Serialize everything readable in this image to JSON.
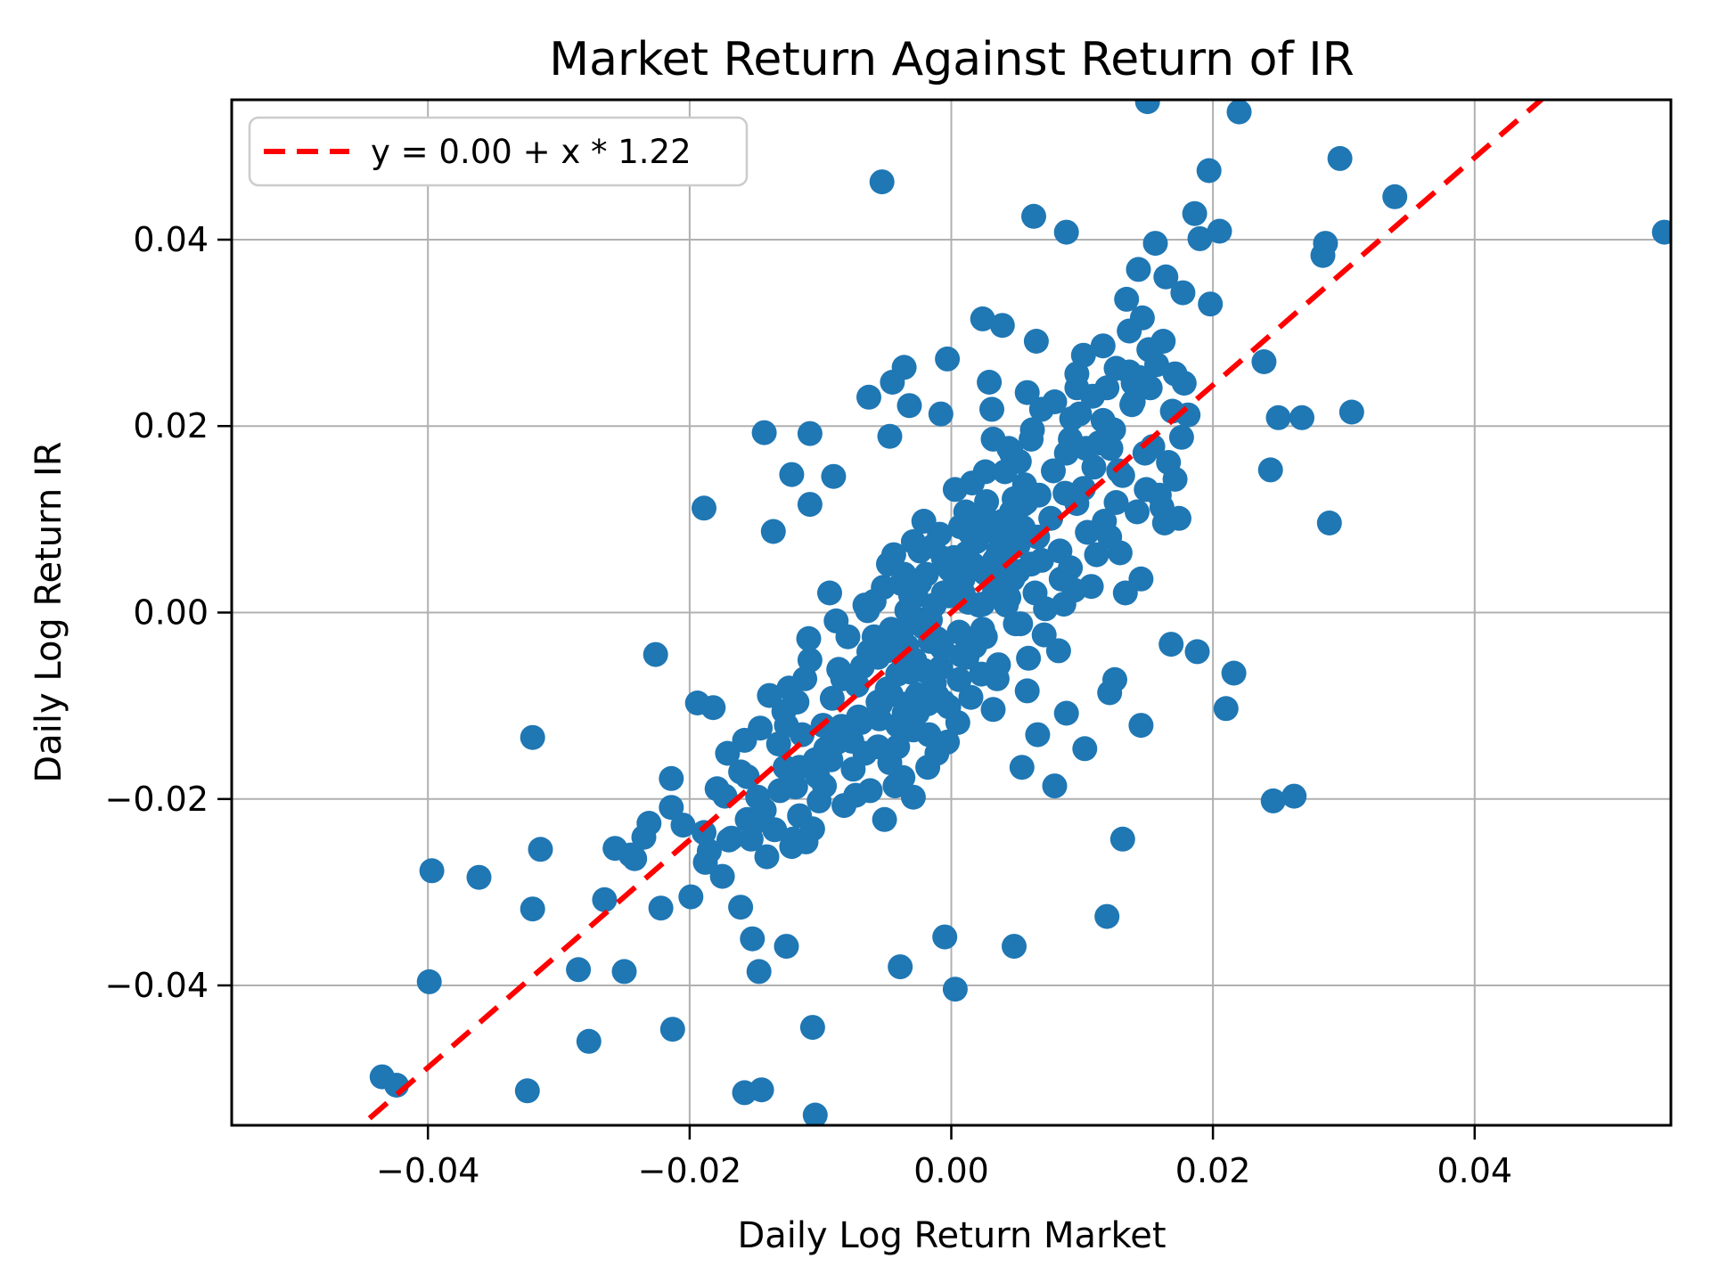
{
  "chart_data": {
    "type": "scatter",
    "title": "Market Return Against Return of IR",
    "xlabel": "Daily Log Return Market",
    "ylabel": "Daily Log Return IR",
    "xlim": [
      -0.055,
      0.055
    ],
    "ylim": [
      -0.055,
      0.055
    ],
    "x_ticks": [
      -0.04,
      -0.02,
      0.0,
      0.02,
      0.04
    ],
    "x_tick_labels": [
      "−0.04",
      "−0.02",
      "0.00",
      "0.02",
      "0.04"
    ],
    "y_ticks": [
      -0.04,
      -0.02,
      0.0,
      0.02,
      0.04
    ],
    "y_tick_labels": [
      "−0.04",
      "−0.02",
      "0.00",
      "0.02",
      "0.04"
    ],
    "grid": true,
    "grid_color": "#b0b0b0",
    "spine_color": "#000000",
    "marker_color": "#1f77b4",
    "marker_radius_px": 14,
    "legend": {
      "position": "upper left",
      "entries": [
        {
          "label": "y = 0.00 + x * 1.22",
          "color": "#ff0000",
          "linestyle": "dashed"
        }
      ]
    },
    "regression_line": {
      "intercept": 0.0,
      "slope": 1.22,
      "color": "#ff0000",
      "linestyle": "dashed"
    },
    "points": [
      [
        -0.0053,
        0.0462
      ],
      [
        0.022,
        0.0537
      ],
      [
        0.0297,
        0.0487
      ],
      [
        0.0197,
        0.0474
      ],
      [
        0.015,
        0.0548
      ],
      [
        0.0156,
        0.0396
      ],
      [
        0.019,
        0.0401
      ],
      [
        0.0286,
        0.0396
      ],
      [
        0.0284,
        0.0383
      ],
      [
        0.0339,
        0.0446
      ],
      [
        0.0545,
        0.0408
      ],
      [
        0.0063,
        0.0425
      ],
      [
        0.0088,
        0.0408
      ],
      [
        0.0186,
        0.0428
      ],
      [
        0.0205,
        0.0409
      ],
      [
        0.0143,
        0.0368
      ],
      [
        0.0164,
        0.036
      ],
      [
        0.0177,
        0.0343
      ],
      [
        0.0134,
        0.0336
      ],
      [
        0.0198,
        0.0331
      ],
      [
        0.0239,
        0.0269
      ],
      [
        0.025,
        0.0209
      ],
      [
        0.0268,
        0.0209
      ],
      [
        0.0244,
        0.0153
      ],
      [
        0.0289,
        0.0096
      ],
      [
        0.0306,
        0.0215
      ],
      [
        0.021,
        -0.0103
      ],
      [
        0.0168,
        -0.0034
      ],
      [
        0.0188,
        -0.0042
      ],
      [
        0.0216,
        -0.0065
      ],
      [
        0.0246,
        -0.0202
      ],
      [
        0.0262,
        -0.0197
      ],
      [
        0.0131,
        -0.0243
      ],
      [
        0.0119,
        -0.0326
      ],
      [
        0.0125,
        -0.0072
      ],
      [
        0.0145,
        -0.0121
      ],
      [
        -0.0104,
        -0.0539
      ],
      [
        -0.0158,
        -0.0515
      ],
      [
        -0.0145,
        -0.0512
      ],
      [
        -0.0106,
        -0.0445
      ],
      [
        -0.0213,
        -0.0447
      ],
      [
        -0.0277,
        -0.046
      ],
      [
        -0.0324,
        -0.0513
      ],
      [
        -0.0424,
        -0.0507
      ],
      [
        -0.0435,
        -0.0498
      ],
      [
        -0.0399,
        -0.0396
      ],
      [
        -0.0397,
        -0.0277
      ],
      [
        -0.0314,
        -0.0254
      ],
      [
        -0.032,
        -0.0318
      ],
      [
        -0.032,
        -0.0134
      ],
      [
        -0.0361,
        -0.0284
      ],
      [
        -0.025,
        -0.0385
      ],
      [
        -0.0147,
        -0.0385
      ],
      [
        -0.0126,
        -0.0358
      ],
      [
        -0.0152,
        -0.035
      ],
      [
        -0.0039,
        -0.038
      ],
      [
        0.0003,
        -0.0404
      ],
      [
        0.0048,
        -0.0358
      ],
      [
        -0.0005,
        -0.0348
      ],
      [
        -0.0231,
        -0.0226
      ],
      [
        -0.0205,
        -0.0228
      ],
      [
        -0.0189,
        -0.0236
      ],
      [
        -0.0214,
        -0.0178
      ],
      [
        -0.0257,
        -0.0253
      ],
      [
        -0.0245,
        -0.026
      ],
      [
        -0.0194,
        -0.0097
      ],
      [
        -0.0182,
        -0.0102
      ],
      [
        -0.0285,
        -0.0383
      ],
      [
        -0.0242,
        -0.0264
      ],
      [
        -0.0222,
        -0.0317
      ],
      [
        -0.0265,
        -0.0308
      ],
      [
        -0.0235,
        -0.0241
      ],
      [
        -0.0199,
        -0.0305
      ],
      [
        -0.0175,
        -0.0283
      ],
      [
        -0.0161,
        -0.0316
      ],
      [
        -0.0188,
        -0.0268
      ],
      [
        -0.017,
        -0.0244
      ],
      [
        -0.0214,
        -0.0209
      ],
      [
        -0.0173,
        -0.0197
      ],
      [
        -0.0156,
        -0.0222
      ],
      [
        -0.0108,
        0.0192
      ],
      [
        -0.0143,
        0.0193
      ],
      [
        -0.0122,
        0.0148
      ],
      [
        -0.0189,
        0.0112
      ],
      [
        -0.0136,
        0.0087
      ],
      [
        -0.0108,
        0.0116
      ],
      [
        -0.0226,
        -0.0045
      ],
      [
        0.0024,
        0.0315
      ],
      [
        0.0039,
        0.0308
      ],
      [
        0.0065,
        0.0291
      ],
      [
        -0.0003,
        0.0272
      ],
      [
        -0.0036,
        0.0263
      ],
      [
        -0.0045,
        0.0247
      ],
      [
        -0.0063,
        0.0231
      ],
      [
        -0.0032,
        0.0222
      ],
      [
        0.0029,
        0.0247
      ],
      [
        0.0031,
        0.0218
      ],
      [
        -0.0008,
        0.0213
      ],
      [
        -0.0047,
        0.0189
      ],
      [
        -0.009,
        0.0146
      ],
      [
        0.0101,
        0.0276
      ],
      [
        0.0012,
        0.0064
      ],
      [
        -0.0087,
        -0.0139
      ],
      [
        0.0035,
        -0.0071
      ],
      [
        -0.0019,
        0.0041
      ],
      [
        0.0078,
        0.0152
      ],
      [
        -0.0128,
        -0.0106
      ],
      [
        0.0005,
        -0.0118
      ],
      [
        -0.0052,
        0.0027
      ],
      [
        0.0091,
        0.0048
      ],
      [
        -0.0143,
        -0.0212
      ],
      [
        0.0027,
        0.0119
      ],
      [
        -0.0008,
        -0.0059
      ],
      [
        0.0064,
        0.0021
      ],
      [
        -0.0171,
        -0.0151
      ],
      [
        0.0103,
        0.0176
      ],
      [
        -0.0034,
        -0.0098
      ],
      [
        0.0149,
        0.0132
      ],
      [
        -0.0066,
        0.0008
      ],
      [
        0.0018,
        -0.0036
      ],
      [
        -0.0112,
        -0.0071
      ],
      [
        0.0056,
        0.0137
      ],
      [
        -0.0185,
        -0.0256
      ],
      [
        0.0129,
        0.0064
      ],
      [
        -0.0041,
        -0.0144
      ],
      [
        0.0088,
        0.0171
      ],
      [
        -0.0023,
        -0.0008
      ],
      [
        0.0007,
        0.0092
      ],
      [
        -0.0135,
        -0.0233
      ],
      [
        0.0166,
        0.0161
      ],
      [
        -0.0075,
        -0.0168
      ],
      [
        0.0042,
        0.0008
      ],
      [
        -0.0097,
        -0.0186
      ],
      [
        0.0115,
        0.0091
      ],
      [
        -0.0014,
        0.0071
      ],
      [
        0.0071,
        -0.0024
      ],
      [
        -0.0158,
        -0.0137
      ],
      [
        0.0026,
        0.0151
      ],
      [
        -0.0063,
        -0.0042
      ],
      [
        0.0138,
        0.0223
      ],
      [
        -0.0029,
        -0.0126
      ],
      [
        0.0096,
        0.0117
      ],
      [
        -0.0119,
        -0.0187
      ],
      [
        0.0001,
        0.0023
      ],
      [
        -0.0146,
        -0.0124
      ],
      [
        0.0059,
        -0.0049
      ],
      [
        -0.0082,
        -0.0207
      ],
      [
        0.0124,
        0.0196
      ],
      [
        -0.0048,
        0.0052
      ],
      [
        0.0083,
        0.0066
      ],
      [
        -0.0037,
        -0.0177
      ],
      [
        0.0021,
        0.0104
      ],
      [
        -0.0108,
        -0.0051
      ],
      [
        0.0152,
        0.0241
      ],
      [
        -0.0011,
        -0.0089
      ],
      [
        0.0048,
        0.0122
      ],
      [
        -0.0122,
        -0.0251
      ],
      [
        0.0107,
        0.0028
      ],
      [
        -0.0055,
        -0.0114
      ],
      [
        0.0176,
        0.0188
      ],
      [
        -0.0093,
        0.0021
      ],
      [
        0.0015,
        -0.0091
      ],
      [
        -0.0069,
        -0.0118
      ],
      [
        0.0131,
        0.0147
      ],
      [
        -0.0027,
        0.0018
      ],
      [
        0.0069,
        0.0218
      ],
      [
        -0.0151,
        -0.0226
      ],
      [
        0.0037,
        0.0058
      ],
      [
        -0.0104,
        -0.0158
      ],
      [
        0.0086,
        0.0009
      ],
      [
        -0.0003,
        -0.0139
      ],
      [
        0.0142,
        0.0108
      ],
      [
        -0.0059,
        -0.0026
      ],
      [
        0.0098,
        0.0213
      ],
      [
        -0.0031,
        -0.0064
      ],
      [
        0.0009,
        0.0036
      ],
      [
        -0.0139,
        -0.0089
      ],
      [
        0.0119,
        0.0241
      ],
      [
        -0.0084,
        -0.0122
      ],
      [
        0.0053,
        -0.0012
      ],
      [
        -0.0116,
        -0.0218
      ],
      [
        0.0161,
        0.0113
      ],
      [
        -0.0044,
        0.0062
      ],
      [
        0.0032,
        -0.0104
      ],
      [
        -0.0168,
        -0.0242
      ],
      [
        0.0003,
        0.0132
      ],
      [
        -0.0079,
        -0.0026
      ],
      [
        0.0113,
        0.0182
      ],
      [
        -0.0018,
        -0.0166
      ],
      [
        0.0145,
        0.0036
      ],
      [
        -0.0101,
        -0.0202
      ],
      [
        0.0076,
        0.0101
      ],
      [
        -0.0009,
        0.0084
      ],
      [
        0.0136,
        0.0258
      ],
      [
        -0.0127,
        -0.0166
      ],
      [
        0.0046,
        0.0171
      ],
      [
        -0.0036,
        -0.0051
      ],
      [
        0.0023,
        -0.0066
      ],
      [
        -0.0091,
        -0.0092
      ],
      [
        0.0169,
        0.0216
      ],
      [
        -0.0062,
        -0.0191
      ],
      [
        0.0101,
        0.0133
      ],
      [
        -0.0021,
        0.0098
      ],
      [
        0.0061,
        0.0186
      ],
      [
        -0.0132,
        -0.0141
      ],
      [
        0.0013,
        0.0011
      ],
      [
        -0.0072,
        -0.0078
      ],
      [
        0.0157,
        0.0266
      ],
      [
        -0.0047,
        -0.0161
      ],
      [
        0.0094,
        0.0024
      ],
      [
        -0.0016,
        -0.0031
      ],
      [
        0.0041,
        0.0151
      ],
      [
        -0.0106,
        -0.0232
      ],
      [
        0.0121,
        0.0081
      ],
      [
        -0.0001,
        0.0046
      ],
      [
        0.0029,
        0.0098
      ],
      [
        -0.0056,
        -0.0144
      ],
      [
        0.0148,
        0.0171
      ],
      [
        -0.0033,
        0.0003
      ],
      [
        0.0082,
        -0.0041
      ],
      [
        -0.0114,
        -0.0131
      ],
      [
        0.0006,
        -0.0021
      ],
      [
        -0.0148,
        -0.0198
      ],
      [
        0.0067,
        0.0126
      ],
      [
        -0.0088,
        -0.0009
      ],
      [
        0.0178,
        0.0246
      ],
      [
        -0.0026,
        -0.0108
      ],
      [
        0.0109,
        0.0156
      ],
      [
        -0.0041,
        -0.0121
      ],
      [
        0.0019,
        0.0076
      ],
      [
        -0.0161,
        -0.0171
      ],
      [
        0.0133,
        0.0021
      ],
      [
        -0.0068,
        -0.0058
      ],
      [
        0.0051,
        0.0044
      ],
      [
        -0.0098,
        -0.0121
      ],
      [
        0.0092,
        0.0208
      ],
      [
        -0.0013,
        -0.0076
      ],
      [
        0.0163,
        0.0096
      ],
      [
        -0.0121,
        -0.0243
      ],
      [
        0.0002,
        0.0059
      ],
      [
        -0.0029,
        -0.0198
      ],
      [
        0.0126,
        0.0118
      ],
      [
        -0.0076,
        -0.0138
      ],
      [
        0.0039,
        0.0086
      ],
      [
        -0.0179,
        -0.0189
      ],
      [
        0.0072,
        0.0004
      ],
      [
        -0.0118,
        -0.0096
      ],
      [
        0.0016,
        0.0139
      ],
      [
        -0.0051,
        -0.0222
      ],
      [
        0.0111,
        0.0062
      ],
      [
        -0.0006,
        0.0021
      ],
      [
        0.0087,
        0.0128
      ],
      [
        -0.0024,
        0.0066
      ],
      [
        0.0058,
        -0.0084
      ],
      [
        -0.0141,
        -0.0262
      ],
      [
        0.0171,
        0.0143
      ],
      [
        -0.0092,
        -0.0158
      ],
      [
        0.0044,
        0.0176
      ],
      [
        -0.0109,
        -0.0028
      ],
      [
        0.0008,
        -0.0046
      ],
      [
        -0.0066,
        -0.0151
      ],
      [
        0.0139,
        0.0226
      ],
      [
        -0.0038,
        0.0031
      ],
      [
        0.0024,
        0.0009
      ],
      [
        -0.0153,
        -0.0243
      ],
      [
        0.0104,
        0.0086
      ],
      [
        -0.0002,
        -0.0101
      ],
      [
        0.0062,
        0.0196
      ],
      [
        -0.0083,
        -0.0071
      ],
      [
        0.0117,
        0.0098
      ],
      [
        -0.0046,
        -0.0088
      ],
      [
        0.0033,
        0.0056
      ],
      [
        -0.0131,
        -0.0191
      ],
      [
        0.0154,
        0.0178
      ],
      [
        -0.0017,
        -0.0131
      ],
      [
        0.0079,
        0.0226
      ],
      [
        -0.0102,
        -0.0176
      ],
      [
        0.0011,
        0.0108
      ],
      [
        -0.0059,
        0.0012
      ],
      [
        0.0128,
        0.0152
      ],
      [
        -0.0034,
        -0.0036
      ],
      [
        0.0055,
        0.0116
      ],
      [
        -0.0011,
        -0.0151
      ],
      [
        0.0096,
        0.0241
      ],
      [
        -0.0124,
        -0.0081
      ],
      [
        0.0181,
        0.0212
      ],
      [
        -0.0071,
        -0.0112
      ],
      [
        0.0036,
        -0.0056
      ],
      [
        -0.0086,
        -0.0061
      ],
      [
        0.0144,
        0.0252
      ],
      [
        -0.0049,
        -0.0041
      ],
      [
        0.0066,
        0.0081
      ],
      [
        -0.0156,
        -0.0176
      ],
      [
        0.0014,
        0.0086
      ],
      [
        -0.0073,
        -0.0196
      ],
      [
        0.0122,
        0.0176
      ],
      [
        -0.0021,
        -0.0016
      ],
      [
        0.0047,
        0.0036
      ],
      [
        -0.0111,
        -0.0246
      ],
      [
        0.0091,
        0.0186
      ],
      [
        -0.0036,
        0.0041
      ],
      [
        0.0026,
        -0.0026
      ],
      [
        -0.0096,
        -0.0146
      ],
      [
        0.0159,
        0.0126
      ],
      [
        -0.0056,
        -0.0096
      ],
      [
        0.0069,
        0.0056
      ],
      [
        -0.0126,
        -0.0121
      ],
      [
        0.0004,
        0.0018
      ],
      [
        -0.0043,
        -0.0186
      ],
      [
        0.0116,
        0.0206
      ],
      [
        -0.0029,
        0.0076
      ],
      [
        0.0084,
        0.0036
      ],
      [
        -0.0006,
        -0.0096
      ],
      [
        0.0052,
        0.0162
      ],
      [
        -0.0116,
        -0.0166
      ],
      [
        0.0174,
        0.0101
      ],
      [
        -0.0064,
        0.0002
      ],
      [
        0.0126,
        0.0262
      ],
      [
        0.0151,
        0.0282
      ],
      [
        0.0139,
        0.0246
      ],
      [
        0.0108,
        0.0232
      ],
      [
        0.0162,
        0.0291
      ],
      [
        0.0171,
        0.0256
      ],
      [
        0.0066,
        -0.0131
      ],
      [
        0.0088,
        -0.0108
      ],
      [
        0.0102,
        -0.0146
      ],
      [
        0.0054,
        -0.0166
      ],
      [
        0.0121,
        -0.0086
      ],
      [
        0.0079,
        -0.0186
      ],
      [
        0.0136,
        0.0302
      ],
      [
        0.0096,
        0.0256
      ],
      [
        0.0116,
        0.0286
      ],
      [
        0.0146,
        0.0316
      ],
      [
        0.0058,
        0.0236
      ],
      [
        0.0032,
        0.0186
      ],
      [
        0.0009,
        0.0021
      ],
      [
        -0.0028,
        -0.0051
      ],
      [
        0.0041,
        0.0038
      ],
      [
        -0.0013,
        0.0008
      ],
      [
        0.0024,
        -0.0018
      ],
      [
        -0.0049,
        -0.0082
      ],
      [
        0.0017,
        0.0051
      ],
      [
        -0.0038,
        -0.0021
      ],
      [
        0.0055,
        0.0091
      ],
      [
        -0.0021,
        -0.0062
      ],
      [
        0.0036,
        0.0066
      ],
      [
        -0.0007,
        -0.0038
      ],
      [
        0.0044,
        0.0016
      ],
      [
        -0.0016,
        -0.0008
      ],
      [
        0.0028,
        0.0088
      ],
      [
        -0.0044,
        -0.0038
      ],
      [
        0.0012,
        -0.0048
      ],
      [
        -0.0031,
        0.0018
      ],
      [
        0.0051,
        0.0072
      ],
      [
        -0.0024,
        0.0032
      ],
      [
        0.0006,
        -0.0072
      ],
      [
        -0.0054,
        -0.0098
      ],
      [
        0.0033,
        0.0022
      ],
      [
        -0.0002,
        0.0018
      ],
      [
        0.0021,
        0.0008
      ],
      [
        -0.0041,
        -0.0066
      ],
      [
        0.0061,
        0.0052
      ],
      [
        -0.0011,
        -0.0028
      ],
      [
        0.0046,
        0.0108
      ],
      [
        -0.0026,
        -0.0088
      ],
      [
        0.0003,
        0.0032
      ],
      [
        -0.0034,
        0.0002
      ],
      [
        0.0049,
        -0.0012
      ],
      [
        -0.0018,
        -0.0098
      ],
      [
        0.0057,
        0.0118
      ],
      [
        -0.0046,
        -0.0018
      ],
      [
        0.0014,
        -0.0032
      ],
      [
        -0.0006,
        0.0058
      ],
      [
        0.0039,
        0.0098
      ],
      [
        -0.0036,
        -0.0108
      ],
      [
        0.0026,
        0.0042
      ],
      [
        -0.0056,
        -0.0048
      ]
    ]
  }
}
